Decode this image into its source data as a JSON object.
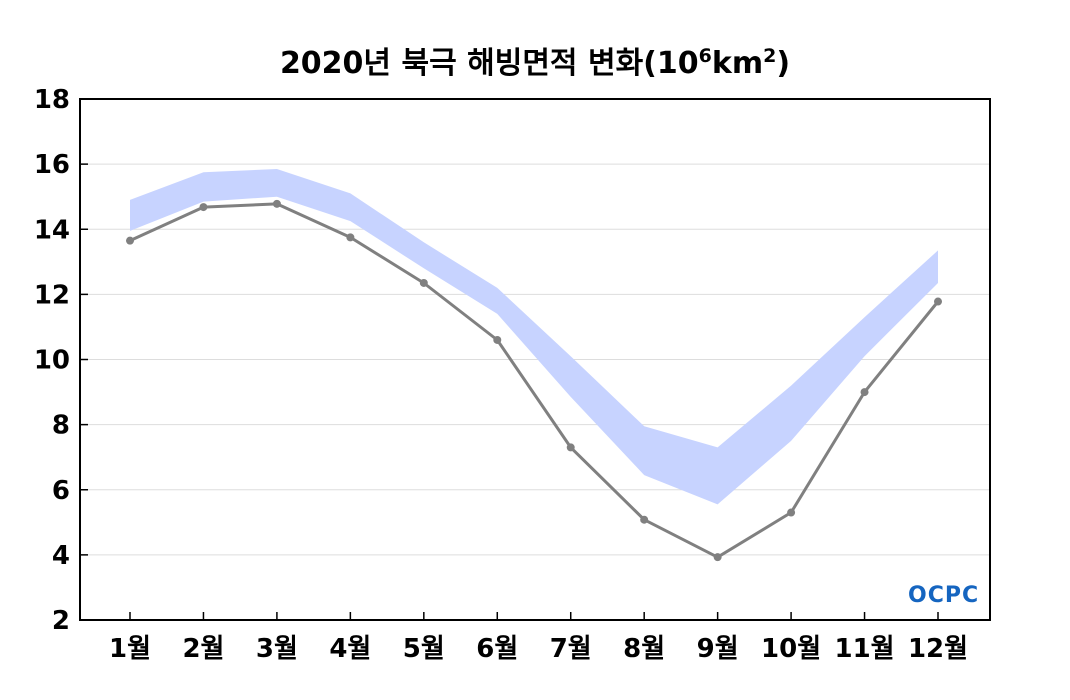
{
  "title": {
    "text": "2020년 북극 해빙면적 변화(10",
    "exp1": "6",
    "unit": "km",
    "exp2": "2",
    "close": ")"
  },
  "watermark": "OCPC",
  "colors": {
    "line": "#808080",
    "band": "#c7d3ff",
    "watermark": "#1565c0"
  },
  "chart_data": {
    "type": "line",
    "categories": [
      "1월",
      "2월",
      "3월",
      "4월",
      "5월",
      "6월",
      "7월",
      "8월",
      "9월",
      "10월",
      "11월",
      "12월"
    ],
    "series": [
      {
        "values": [
          13.65,
          14.68,
          14.78,
          13.75,
          12.35,
          10.6,
          7.3,
          5.08,
          3.93,
          5.3,
          9.0,
          11.78
        ]
      }
    ],
    "band": {
      "upper": [
        14.9,
        15.75,
        15.85,
        15.1,
        13.6,
        12.2,
        10.1,
        7.95,
        7.3,
        9.2,
        11.3,
        13.35
      ],
      "lower": [
        13.95,
        14.85,
        15.0,
        14.25,
        12.8,
        11.4,
        8.85,
        6.45,
        5.55,
        7.5,
        10.1,
        12.35
      ]
    },
    "yticks": [
      2,
      4,
      6,
      8,
      10,
      12,
      14,
      16,
      18
    ],
    "ylim": [
      2,
      18
    ],
    "grid": true
  }
}
